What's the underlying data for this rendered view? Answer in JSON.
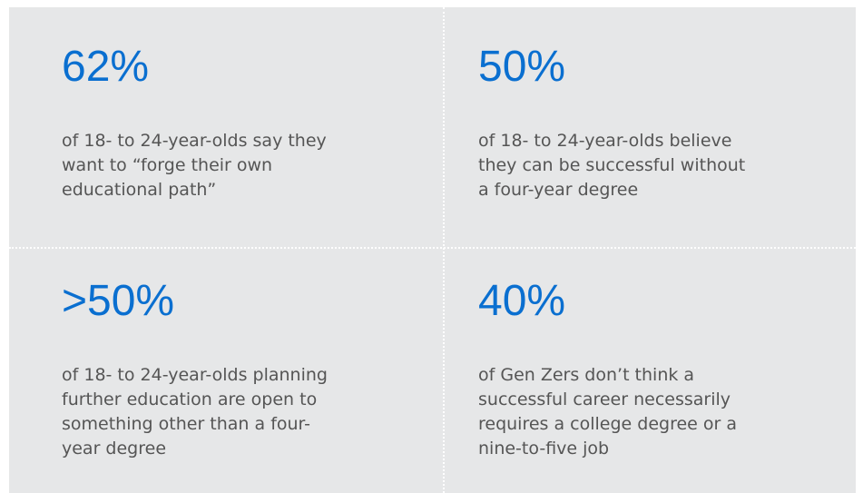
{
  "stats": [
    {
      "value": "62%",
      "lines": [
        "of 18- to 24-year-olds say they",
        "want to “forge their own",
        "educational path”"
      ]
    },
    {
      "value": "50%",
      "lines": [
        "of 18- to 24-year-olds believe",
        "they can be successful without",
        "a four-year degree"
      ]
    },
    {
      "value": ">50%",
      "lines": [
        "of 18- to 24-year-olds planning",
        "further education are open to",
        "something other than a four-",
        "year degree"
      ]
    },
    {
      "value": "40%",
      "lines": [
        "of Gen Zers don’t think a",
        "successful career necessarily",
        "requires a college degree or a",
        "nine-to-five job"
      ]
    }
  ]
}
